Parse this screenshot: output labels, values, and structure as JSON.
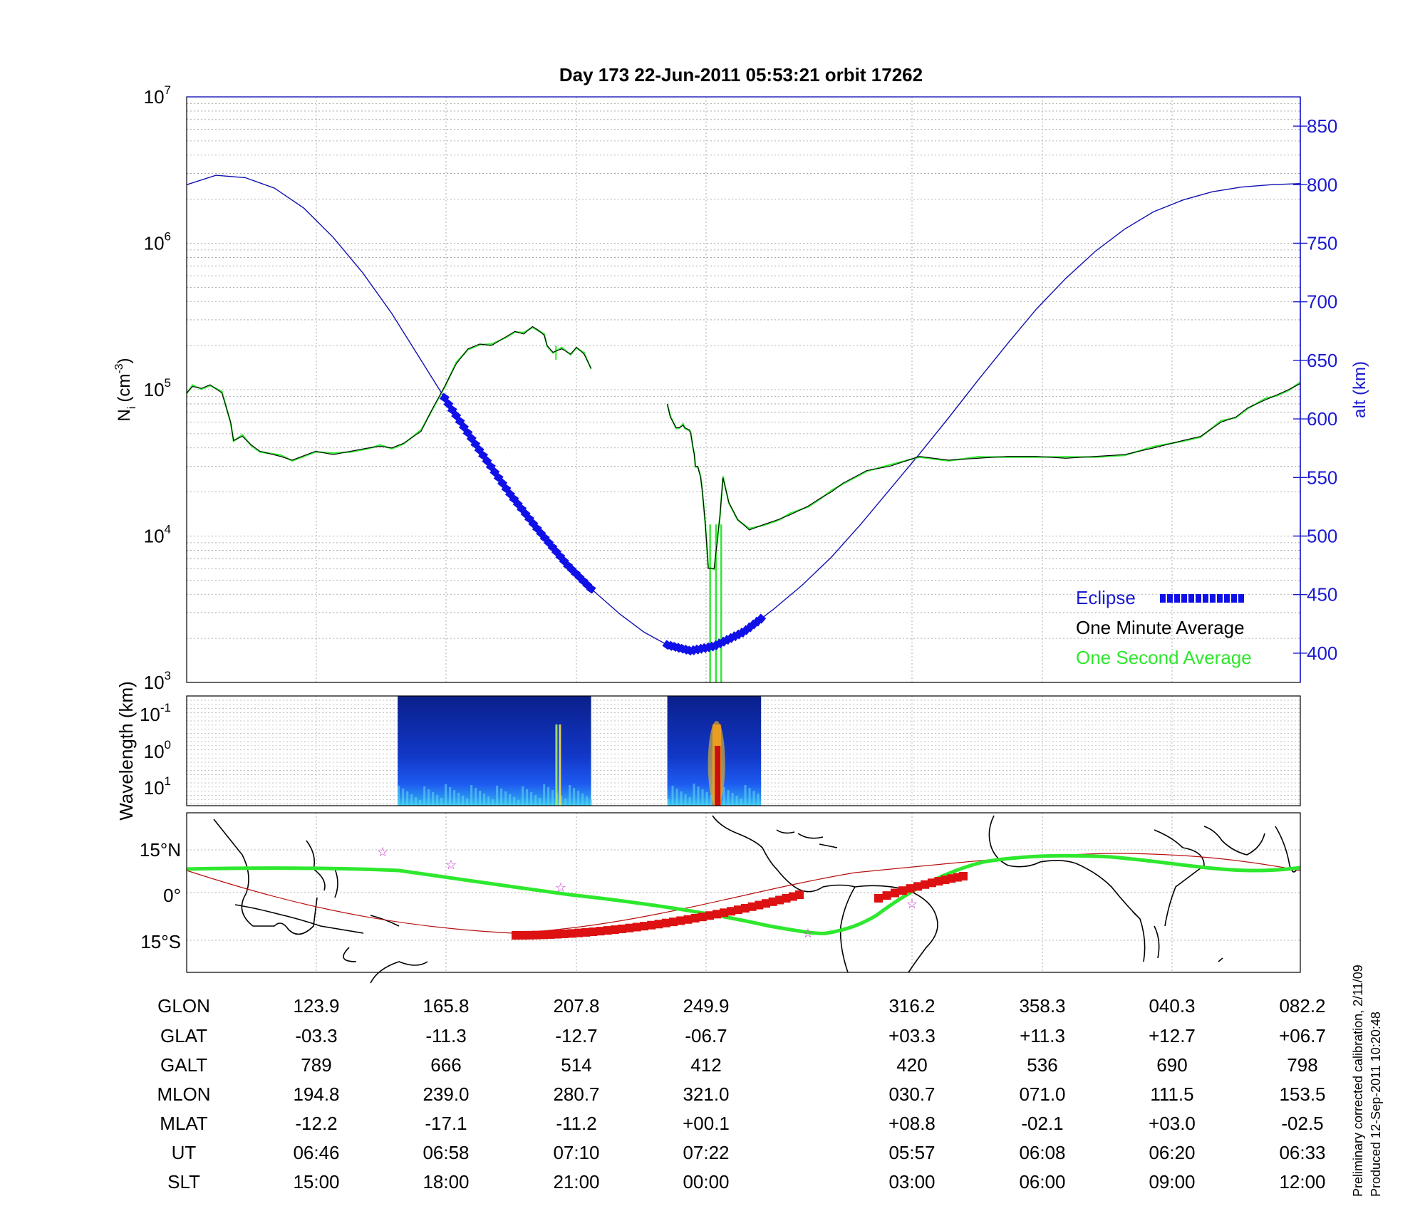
{
  "chart_data": [
    {
      "type": "line",
      "title": "Day 173  22-Jun-2011 05:53:21   orbit 17262",
      "ylabel_left": "N",
      "ylabel_left_sub": "i",
      "ylabel_left_unit": "(cm",
      "ylabel_left_sup": "-3",
      "ylabel_left_close": ")",
      "ylabel_right": "alt (km)",
      "yscale_left": "log",
      "ylim_left": [
        1000,
        10000000
      ],
      "ytick_left_exponents": [
        "3",
        "4",
        "5",
        "6",
        "7"
      ],
      "ylim_right": [
        375,
        875
      ],
      "yticks_right": [
        "400",
        "450",
        "500",
        "550",
        "600",
        "650",
        "700",
        "750",
        "800",
        "850"
      ],
      "grid": true,
      "legend_position": "bottom-right",
      "legend": [
        {
          "label": "Eclipse",
          "color": "#1010e8"
        },
        {
          "label": "One Minute Average",
          "color": "#000000"
        },
        {
          "label": "One Second Average",
          "color": "#2ee82e"
        }
      ],
      "series": [
        {
          "name": "One Minute Average",
          "axis": "left",
          "segments": [
            {
              "x": [
                0,
                0.01,
                0.025,
                0.04,
                0.06,
                0.075,
                0.08,
                0.095,
                0.11,
                0.125,
                0.16,
                0.18,
                0.22,
                0.25,
                0.28,
                0.31,
                0.33,
                0.35,
                0.37,
                0.4,
                0.42,
                0.44,
                0.46,
                0.48,
                0.5,
                0.52,
                0.545,
                0.56,
                0.575,
                0.59,
                0.6,
                0.61,
                0.615,
                0.625,
                0.64,
                0.655,
                0.665,
                0.678,
                0.69
              ],
              "y": [
                95000,
                105000,
                102000,
                108000,
                95000,
                60000,
                45000,
                48000,
                42000,
                38000,
                35000,
                33000,
                38000,
                36000,
                38000,
                40000,
                41000,
                40000,
                43000,
                52000,
                75000,
                105000,
                150000,
                190000,
                205000,
                200000,
                230000,
                250000,
                240000,
                270000,
                255000,
                235000,
                200000,
                180000,
                190000,
                175000,
                195000,
                175000,
                140000
              ]
            },
            {
              "x": [
                0.82,
                0.825,
                0.835,
                0.84,
                0.847,
                0.85,
                0.858,
                0.86,
                0.862,
                0.864,
                0.866,
                0.868,
                0.872,
                0.877,
                0.88,
                0.885,
                0.89,
                0.9,
                0.91,
                0.915,
                0.925,
                0.94,
                0.96,
                0.985,
                1.01,
                1.03,
                1.06,
                1.08,
                1.1,
                1.12,
                1.16,
                1.2,
                1.25,
                1.3,
                1.35,
                1.4,
                1.45,
                1.5,
                1.55,
                1.6,
                1.65,
                1.7,
                1.73,
                1.765,
                1.79,
                1.81,
                1.84,
                1.86,
                1.88,
                1.9
              ],
              "y": [
                80000,
                65000,
                55000,
                55000,
                57000,
                55000,
                53000,
                50000,
                45000,
                40000,
                36000,
                30000,
                30000,
                25000,
                20000,
                12000,
                6000,
                6000,
                14000,
                25000,
                17000,
                13000,
                11000,
                12000,
                13000,
                14000,
                16000,
                18000,
                20000,
                23000,
                28000,
                30000,
                35000,
                33000,
                34000,
                35000,
                35000,
                34000,
                35000,
                36000,
                40000,
                45000,
                48000,
                60000,
                65000,
                75000,
                85000,
                92000,
                100000,
                110000
              ]
            }
          ]
        },
        {
          "name": "One Second Average",
          "axis": "left",
          "note_spikes": "matches one minute average with dips to bottom near x=0.89–0.92 and a dip near x=0.63"
        },
        {
          "name": "alt (km)",
          "axis": "right",
          "x": [
            0,
            0.05,
            0.1,
            0.15,
            0.2,
            0.25,
            0.3,
            0.35,
            0.4,
            0.45,
            0.5,
            0.55,
            0.6,
            0.65,
            0.69,
            0.74,
            0.78,
            0.82,
            0.86,
            0.9,
            0.95,
            1.0,
            1.05,
            1.1,
            1.15,
            1.2,
            1.25,
            1.3,
            1.35,
            1.4,
            1.45,
            1.5,
            1.55,
            1.6,
            1.65,
            1.7,
            1.75,
            1.8,
            1.85,
            1.9
          ],
          "y": [
            800,
            808,
            806,
            797,
            780,
            755,
            725,
            690,
            650,
            610,
            573,
            537,
            505,
            475,
            455,
            433,
            418,
            407,
            402,
            406,
            418,
            437,
            458,
            482,
            510,
            540,
            570,
            601,
            633,
            664,
            694,
            720,
            743,
            762,
            777,
            787,
            794,
            798,
            800,
            801
          ]
        }
      ],
      "eclipse_segments": [
        [
          0.44,
          0.69
        ],
        [
          0.82,
          0.98
        ]
      ]
    },
    {
      "type": "heatmap",
      "ylabel": "Wavelength (km)",
      "ytick_exponents": [
        "-1",
        "0",
        "1"
      ],
      "ytick_base": "10",
      "colormap": "jet",
      "data_blocks": [
        [
          0.36,
          0.69
        ],
        [
          0.82,
          0.98
        ]
      ]
    },
    {
      "type": "map",
      "ytick_labels": [
        "15°N",
        "0°",
        "15°S"
      ],
      "track_color": "#2ee82e",
      "magnetic_equator_color": "#cc0000",
      "star_color": "#cc33cc"
    }
  ],
  "table": {
    "row_labels": [
      "GLON",
      "GLAT",
      "GALT",
      "MLON",
      "MLAT",
      "UT",
      "SLT"
    ],
    "columns": [
      [
        "123.9",
        "-03.3",
        "789",
        "194.8",
        "-12.2",
        "06:46",
        "15:00"
      ],
      [
        "165.8",
        "-11.3",
        "666",
        "239.0",
        "-17.1",
        "06:58",
        "18:00"
      ],
      [
        "207.8",
        "-12.7",
        "514",
        "280.7",
        "-11.2",
        "07:10",
        "21:00"
      ],
      [
        "249.9",
        "-06.7",
        "412",
        "321.0",
        "+00.1",
        "07:22",
        "00:00"
      ],
      [
        "316.2",
        "+03.3",
        "420",
        "030.7",
        "+08.8",
        "05:57",
        "03:00"
      ],
      [
        "358.3",
        "+11.3",
        "536",
        "071.0",
        "-02.1",
        "06:08",
        "06:00"
      ],
      [
        "040.3",
        "+12.7",
        "690",
        "111.5",
        "+03.0",
        "06:20",
        "09:00"
      ],
      [
        "082.2",
        "+06.7",
        "798",
        "153.5",
        "-02.5",
        "06:33",
        "12:00"
      ]
    ]
  },
  "footer": {
    "line1": "Preliminary corrected calibration, 2/11/09",
    "line2": "Produced 12-Sep-2011 10:20:48"
  },
  "colors": {
    "eclipse": "#1010e8",
    "minute": "#000000",
    "second": "#2ee82e",
    "altitude": "#1010b0",
    "axis_right": "#1a1ad0",
    "red_track": "#dd1111"
  }
}
